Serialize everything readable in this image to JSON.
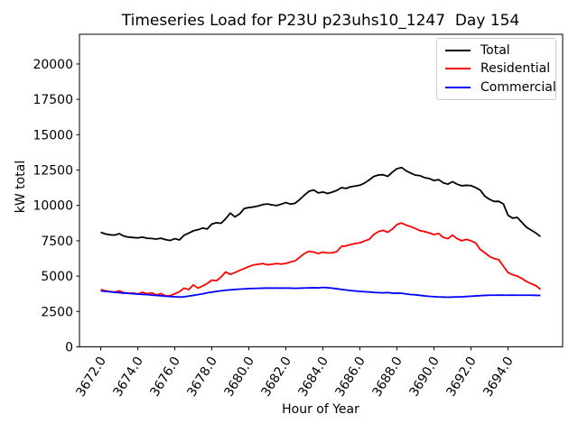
{
  "chart_data": {
    "type": "line",
    "title": "Timeseries Load for P23U p23uhs10_1247  Day 154",
    "xlabel": "Hour of Year",
    "ylabel": "kW total",
    "grid": false,
    "legend_position": "upper-right",
    "xlim": [
      3670.85,
      3696.95
    ],
    "ylim": [
      0,
      22100
    ],
    "xtick_positions": [
      3672,
      3674,
      3676,
      3678,
      3680,
      3682,
      3684,
      3686,
      3688,
      3690,
      3692,
      3694
    ],
    "xtick_labels": [
      "3672.0",
      "3674.0",
      "3676.0",
      "3678.0",
      "3680.0",
      "3682.0",
      "3684.0",
      "3686.0",
      "3688.0",
      "3690.0",
      "3692.0",
      "3694.0"
    ],
    "ytick_positions": [
      0,
      2500,
      5000,
      7500,
      10000,
      12500,
      15000,
      17500,
      20000
    ],
    "ytick_labels": [
      "0",
      "2500",
      "5000",
      "7500",
      "10000",
      "12500",
      "15000",
      "17500",
      "20000"
    ],
    "x": [
      3672.0,
      3672.25,
      3672.5,
      3672.75,
      3673.0,
      3673.25,
      3673.5,
      3673.75,
      3674.0,
      3674.25,
      3674.5,
      3674.75,
      3675.0,
      3675.25,
      3675.5,
      3675.75,
      3676.0,
      3676.25,
      3676.5,
      3676.75,
      3677.0,
      3677.25,
      3677.5,
      3677.75,
      3678.0,
      3678.25,
      3678.5,
      3678.75,
      3679.0,
      3679.25,
      3679.5,
      3679.75,
      3680.0,
      3680.25,
      3680.5,
      3680.75,
      3681.0,
      3681.25,
      3681.5,
      3681.75,
      3682.0,
      3682.25,
      3682.5,
      3682.75,
      3683.0,
      3683.25,
      3683.5,
      3683.75,
      3684.0,
      3684.25,
      3684.5,
      3684.75,
      3685.0,
      3685.25,
      3685.5,
      3685.75,
      3686.0,
      3686.25,
      3686.5,
      3686.75,
      3687.0,
      3687.25,
      3687.5,
      3687.75,
      3688.0,
      3688.25,
      3688.5,
      3688.75,
      3689.0,
      3689.25,
      3689.5,
      3689.75,
      3690.0,
      3690.25,
      3690.5,
      3690.75,
      3691.0,
      3691.25,
      3691.5,
      3691.75,
      3692.0,
      3692.25,
      3692.5,
      3692.75,
      3693.0,
      3693.25,
      3693.5,
      3693.75,
      3694.0,
      3694.25,
      3694.5,
      3694.75,
      3695.0,
      3695.25,
      3695.5,
      3695.75
    ],
    "series": [
      {
        "name": "Total",
        "color": "#000000",
        "values": [
          8100,
          7980,
          7920,
          7900,
          8000,
          7830,
          7760,
          7730,
          7700,
          7760,
          7680,
          7660,
          7620,
          7680,
          7580,
          7520,
          7650,
          7560,
          7890,
          8040,
          8200,
          8280,
          8400,
          8330,
          8680,
          8780,
          8740,
          9060,
          9460,
          9190,
          9400,
          9780,
          9850,
          9890,
          9960,
          10060,
          10100,
          10040,
          9990,
          10090,
          10200,
          10090,
          10150,
          10420,
          10730,
          11000,
          11090,
          10880,
          10950,
          10840,
          10940,
          11060,
          11260,
          11200,
          11320,
          11370,
          11430,
          11580,
          11800,
          12050,
          12150,
          12170,
          12050,
          12350,
          12600,
          12680,
          12440,
          12280,
          12140,
          12100,
          11960,
          11900,
          11760,
          11820,
          11600,
          11500,
          11680,
          11500,
          11390,
          11420,
          11400,
          11260,
          11080,
          10650,
          10430,
          10280,
          10290,
          10100,
          9300,
          9100,
          9150,
          8800,
          8450,
          8250,
          8050,
          7800
        ]
      },
      {
        "name": "Residential",
        "color": "#ff0000",
        "values": [
          4050,
          3960,
          3910,
          3870,
          3960,
          3830,
          3790,
          3810,
          3730,
          3860,
          3760,
          3810,
          3670,
          3760,
          3610,
          3620,
          3750,
          3900,
          4150,
          4050,
          4380,
          4150,
          4300,
          4480,
          4720,
          4680,
          4940,
          5300,
          5120,
          5260,
          5400,
          5540,
          5680,
          5790,
          5840,
          5890,
          5800,
          5840,
          5890,
          5850,
          5900,
          6000,
          6080,
          6340,
          6600,
          6760,
          6700,
          6600,
          6700,
          6640,
          6650,
          6740,
          7100,
          7140,
          7230,
          7310,
          7350,
          7490,
          7600,
          7950,
          8150,
          8240,
          8100,
          8330,
          8650,
          8760,
          8600,
          8500,
          8360,
          8210,
          8150,
          8050,
          7940,
          8010,
          7740,
          7650,
          7900,
          7650,
          7500,
          7600,
          7500,
          7350,
          6880,
          6650,
          6390,
          6240,
          6160,
          5700,
          5250,
          5100,
          5000,
          4830,
          4620,
          4470,
          4330,
          4060
        ]
      },
      {
        "name": "Commercial",
        "color": "#0000ff",
        "values": [
          3960,
          3920,
          3890,
          3860,
          3830,
          3800,
          3780,
          3760,
          3730,
          3710,
          3690,
          3660,
          3640,
          3610,
          3580,
          3560,
          3540,
          3520,
          3540,
          3590,
          3640,
          3690,
          3750,
          3820,
          3870,
          3920,
          3960,
          4000,
          4030,
          4060,
          4080,
          4100,
          4120,
          4130,
          4140,
          4150,
          4160,
          4150,
          4160,
          4150,
          4160,
          4150,
          4140,
          4150,
          4160,
          4170,
          4180,
          4170,
          4200,
          4180,
          4150,
          4110,
          4060,
          4020,
          3980,
          3950,
          3920,
          3900,
          3880,
          3850,
          3830,
          3820,
          3840,
          3800,
          3790,
          3790,
          3740,
          3700,
          3680,
          3640,
          3600,
          3570,
          3550,
          3530,
          3520,
          3510,
          3520,
          3530,
          3540,
          3560,
          3580,
          3600,
          3620,
          3640,
          3650,
          3650,
          3660,
          3650,
          3650,
          3660,
          3650,
          3650,
          3650,
          3650,
          3640,
          3640
        ]
      }
    ]
  }
}
